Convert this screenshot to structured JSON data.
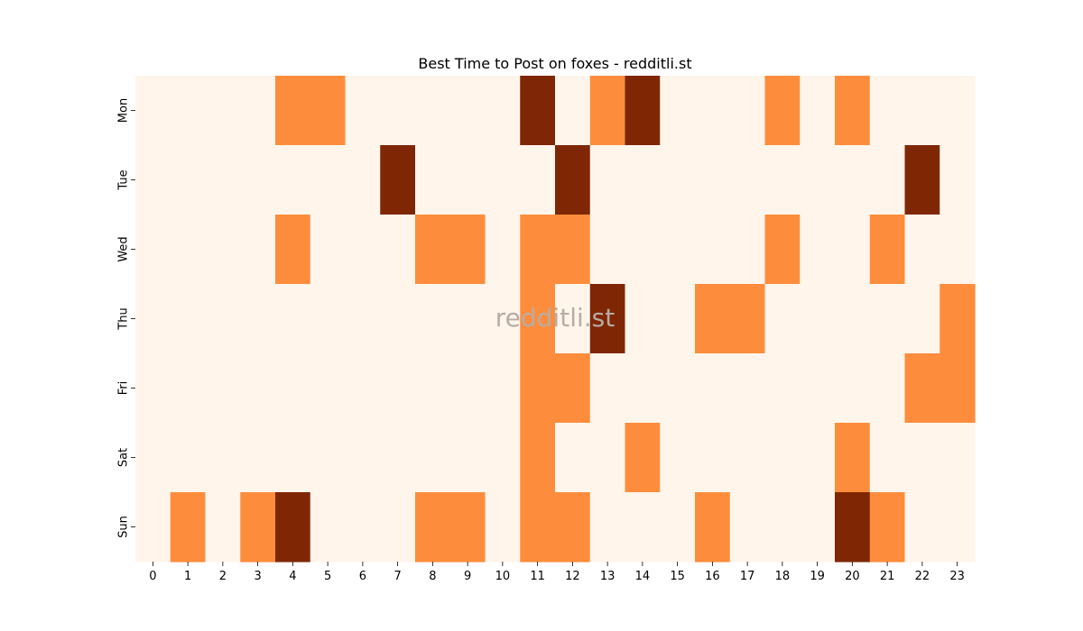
{
  "chart_data": {
    "type": "heatmap",
    "title": "Best Time to Post on foxes - redditli.st",
    "watermark": "redditli.st",
    "xlabel": "",
    "ylabel": "",
    "x": [
      "0",
      "1",
      "2",
      "3",
      "4",
      "5",
      "6",
      "7",
      "8",
      "9",
      "10",
      "11",
      "12",
      "13",
      "14",
      "15",
      "16",
      "17",
      "18",
      "19",
      "20",
      "21",
      "22",
      "23"
    ],
    "y": [
      "Mon",
      "Tue",
      "Wed",
      "Thu",
      "Fri",
      "Sat",
      "Sun"
    ],
    "values": [
      [
        0,
        0,
        0,
        0,
        1,
        1,
        0,
        0,
        0,
        0,
        0,
        2,
        0,
        1,
        2,
        0,
        0,
        0,
        1,
        0,
        1,
        0,
        0,
        0
      ],
      [
        0,
        0,
        0,
        0,
        0,
        0,
        0,
        2,
        0,
        0,
        0,
        0,
        2,
        0,
        0,
        0,
        0,
        0,
        0,
        0,
        0,
        0,
        2,
        0
      ],
      [
        0,
        0,
        0,
        0,
        1,
        0,
        0,
        0,
        1,
        1,
        0,
        1,
        1,
        0,
        0,
        0,
        0,
        0,
        1,
        0,
        0,
        1,
        0,
        0
      ],
      [
        0,
        0,
        0,
        0,
        0,
        0,
        0,
        0,
        0,
        0,
        0,
        1,
        0,
        2,
        0,
        0,
        1,
        1,
        0,
        0,
        0,
        0,
        0,
        1
      ],
      [
        0,
        0,
        0,
        0,
        0,
        0,
        0,
        0,
        0,
        0,
        0,
        1,
        1,
        0,
        0,
        0,
        0,
        0,
        0,
        0,
        0,
        0,
        1,
        1
      ],
      [
        0,
        0,
        0,
        0,
        0,
        0,
        0,
        0,
        0,
        0,
        0,
        1,
        0,
        0,
        1,
        0,
        0,
        0,
        0,
        0,
        1,
        0,
        0,
        0
      ],
      [
        0,
        1,
        0,
        1,
        2,
        0,
        0,
        0,
        1,
        1,
        0,
        1,
        1,
        0,
        0,
        0,
        1,
        0,
        0,
        0,
        2,
        1,
        0,
        0
      ]
    ],
    "colors": {
      "0": "#fff5eb",
      "1": "#fd8d3c",
      "2": "#7f2704"
    },
    "grid": false,
    "legend": "none"
  }
}
